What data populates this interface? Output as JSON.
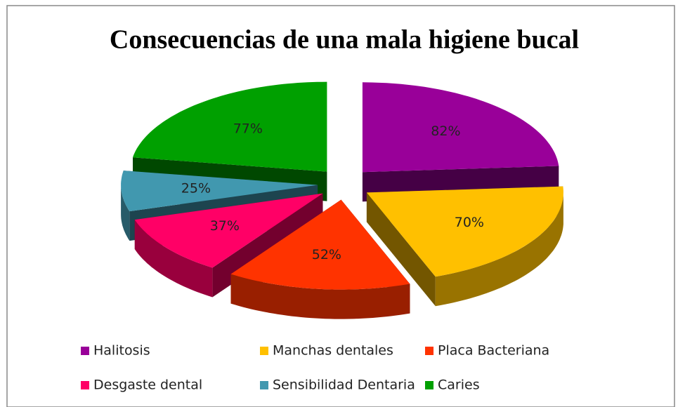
{
  "chart_data": {
    "type": "pie",
    "title": "Consecuencias de una mala higiene bucal",
    "categories": [
      "Halitosis",
      "Manchas dentales",
      "Placa Bacteriana",
      "Desgaste dental",
      "Sensibilidad Dentaria",
      "Caries"
    ],
    "values": [
      82,
      70,
      52,
      37,
      25,
      77
    ],
    "value_labels": [
      "82%",
      "70%",
      "52%",
      "37%",
      "25%",
      "77%"
    ],
    "colors": [
      "#990099",
      "#ffc000",
      "#ff3300",
      "#ff0066",
      "#4198af",
      "#00a000"
    ],
    "legend": "bottom"
  }
}
